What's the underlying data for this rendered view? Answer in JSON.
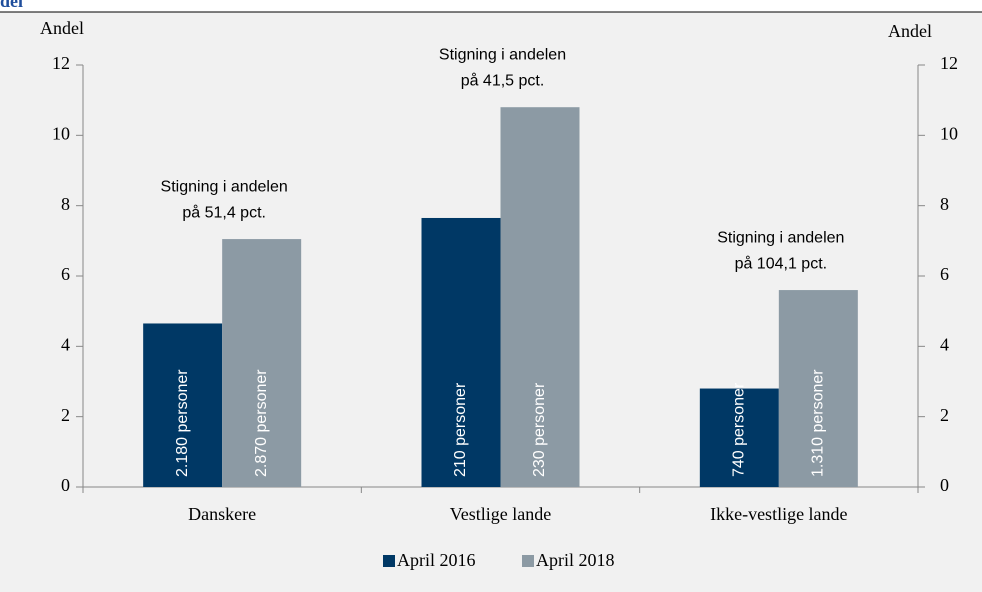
{
  "chart_data": {
    "type": "bar",
    "title": "del",
    "y_label": "Andel",
    "y2_label": "Andel",
    "categories": [
      "Danskere",
      "Vestlige lande",
      "Ikke-vestlige lande"
    ],
    "series": [
      {
        "name": "April 2016",
        "color": "#003865",
        "values": [
          4.65,
          7.65,
          2.8
        ],
        "bar_texts": [
          "2.180 personer",
          "210 personer",
          "740 personer"
        ]
      },
      {
        "name": "April 2018",
        "color": "#8c9aa4",
        "values": [
          7.05,
          10.8,
          5.6
        ],
        "axis": "y2",
        "bar_texts": [
          "2.870 personer",
          "230 personer",
          "1.310 personer"
        ]
      }
    ],
    "annotations": [
      [
        "Stigning i andelen",
        "på 51,4 pct."
      ],
      [
        "Stigning i andelen",
        "på 41,5 pct."
      ],
      [
        "Stigning i andelen",
        "på 104,1 pct."
      ]
    ],
    "ylim": [
      0,
      12
    ],
    "yticks": [
      0,
      2,
      4,
      6,
      8,
      10,
      12
    ],
    "y2lim": [
      0,
      12
    ],
    "y2ticks": [
      0,
      2,
      4,
      6,
      8,
      10,
      12
    ],
    "grid": false,
    "legend": "bottom"
  }
}
